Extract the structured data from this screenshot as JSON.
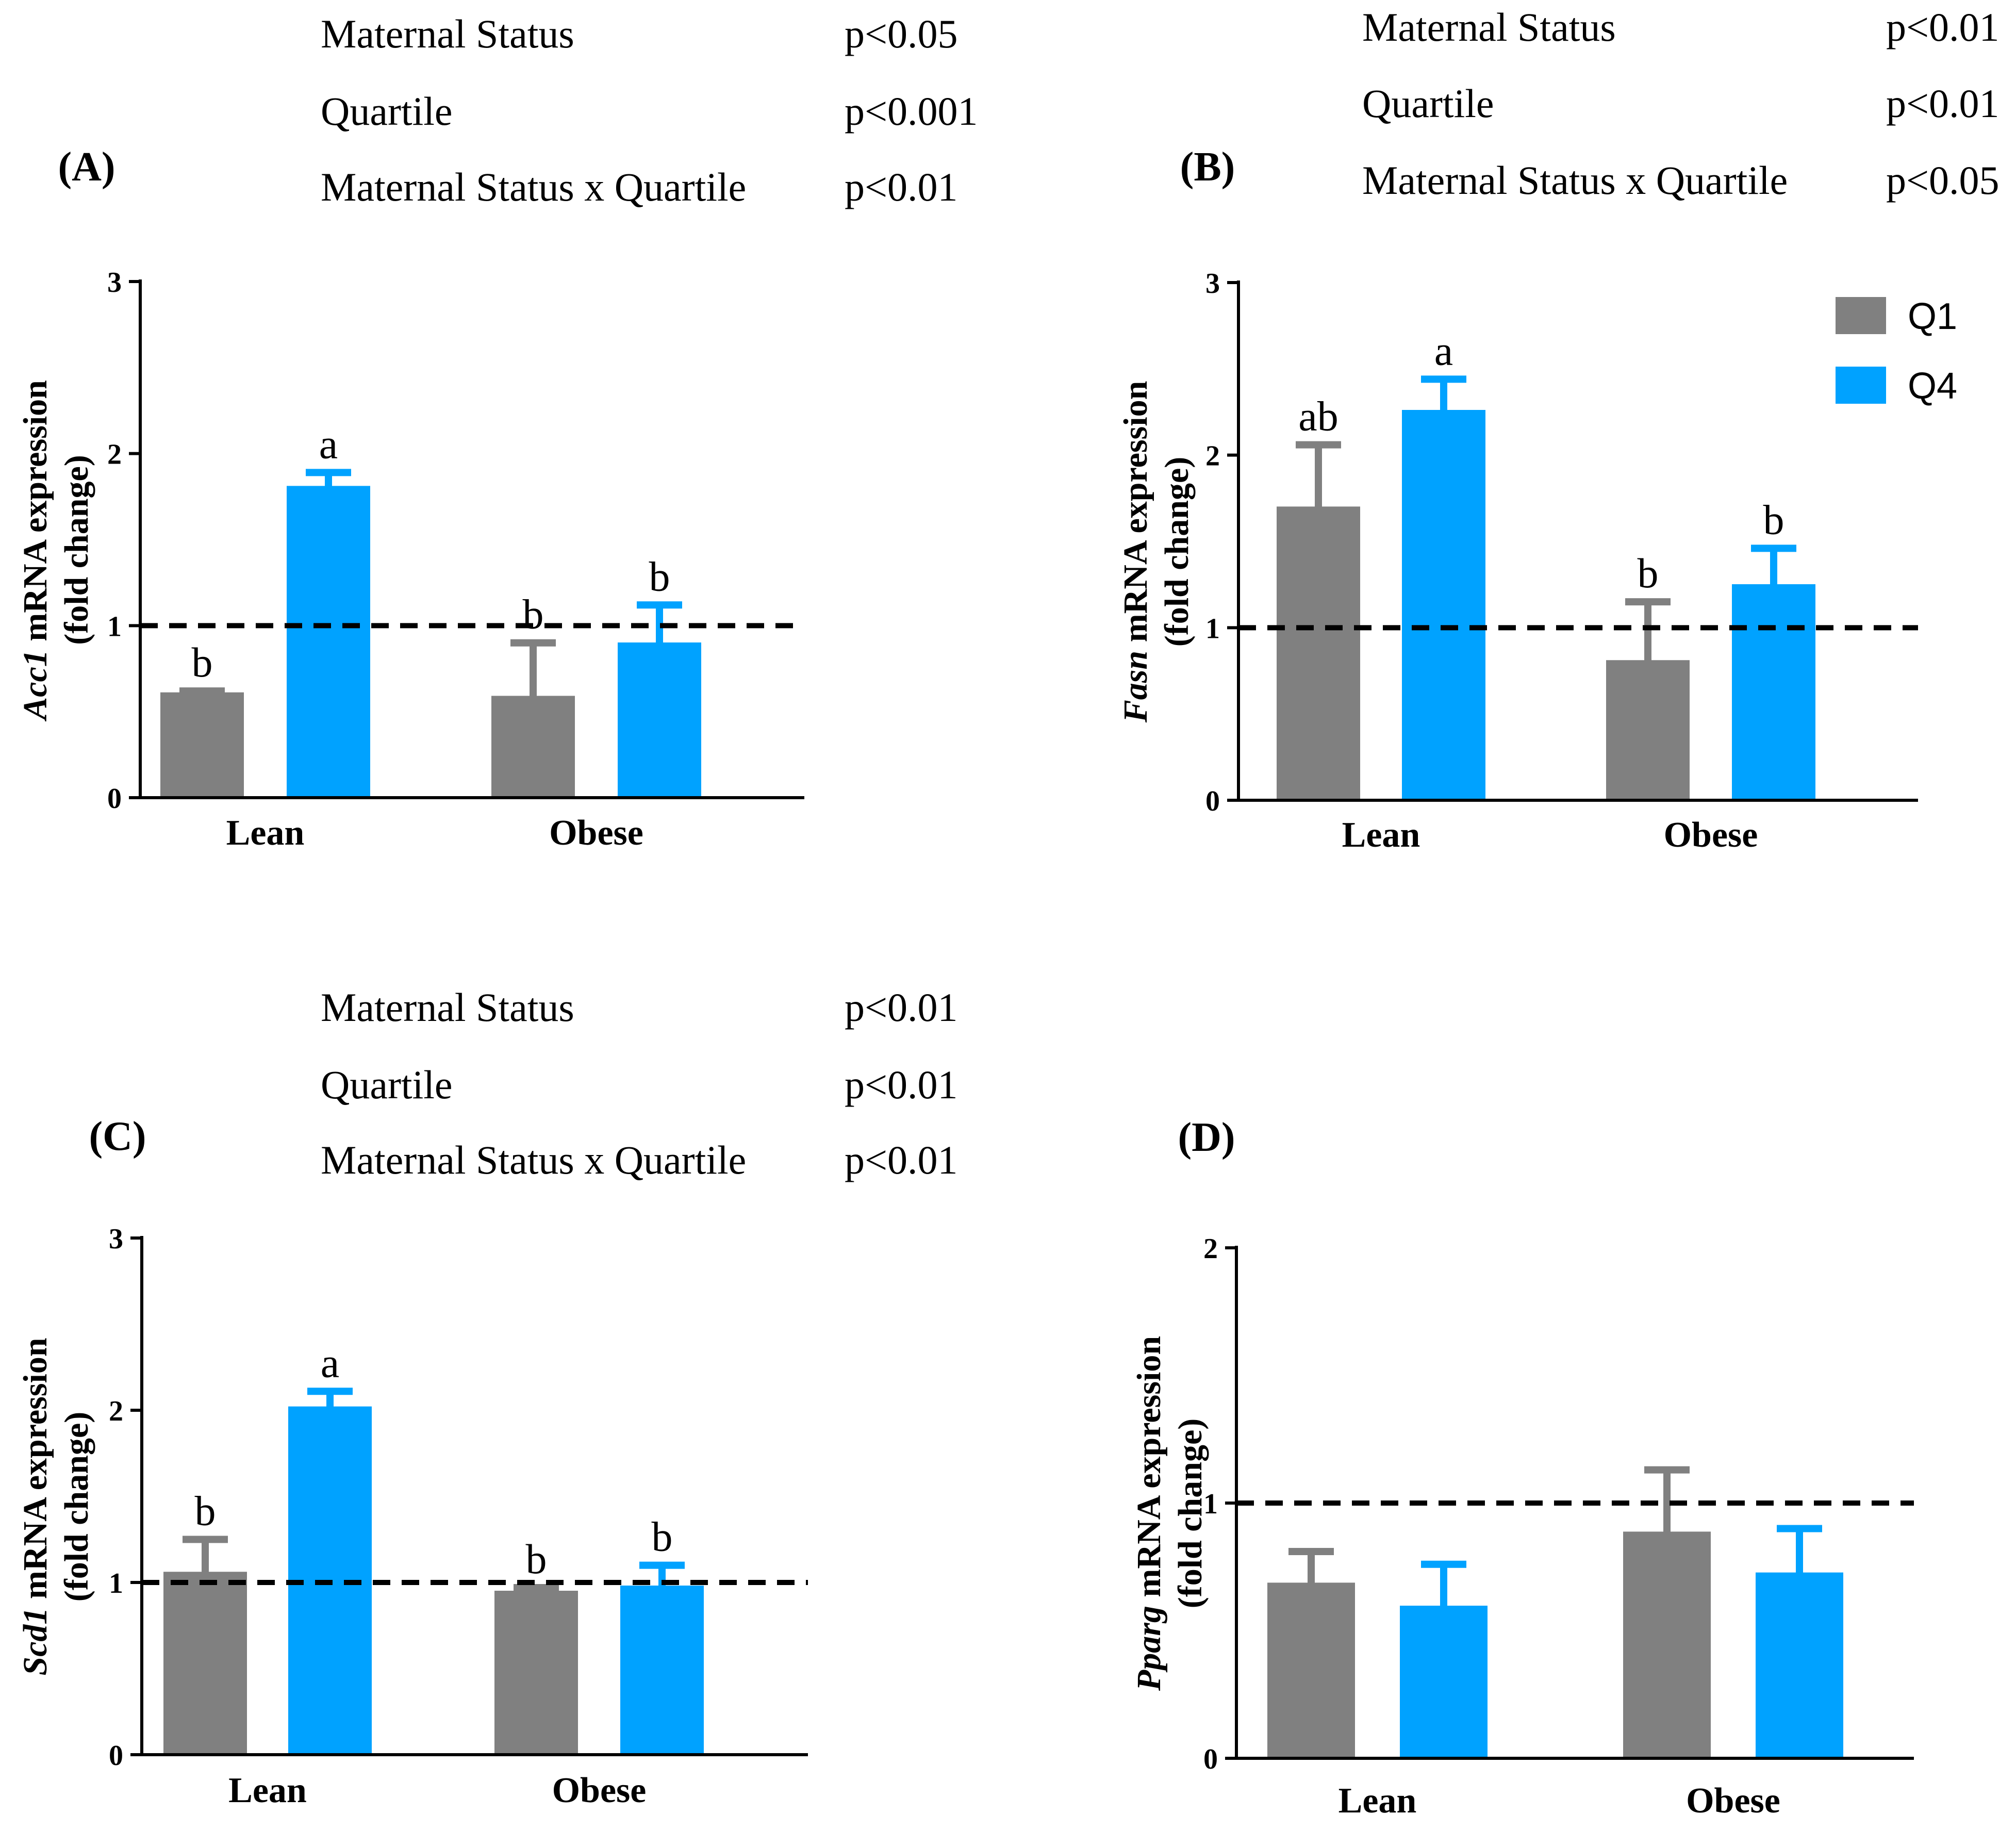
{
  "legend": [
    {
      "label": "Q1",
      "color": "#808080"
    },
    {
      "label": "Q4",
      "color": "#00A2FF"
    }
  ],
  "chart_data": [
    {
      "type": "bar",
      "panel_label": "(A)",
      "gene": "Acc1",
      "ylabel_rest": "mRNA expression",
      "ylabel_line2": "(fold change)",
      "categories": [
        "Lean",
        "Obese"
      ],
      "ylim": [
        0,
        3
      ],
      "yticks": [
        "0",
        "1",
        "2",
        "3"
      ],
      "reference_line": 1,
      "series": [
        {
          "name": "Q1",
          "values": [
            0.6,
            0.58
          ],
          "errors": [
            0.02,
            0.32
          ],
          "letters": [
            "b",
            "b"
          ]
        },
        {
          "name": "Q4",
          "values": [
            1.8,
            0.89
          ],
          "errors": [
            0.09,
            0.23
          ],
          "letters": [
            "a",
            "b"
          ]
        }
      ],
      "stats": [
        {
          "term": "Maternal Status",
          "p": "p<0.05"
        },
        {
          "term": "Quartile",
          "p": "p<0.001"
        },
        {
          "term": "Maternal Status x Quartile",
          "p": "p<0.01"
        }
      ]
    },
    {
      "type": "bar",
      "panel_label": "(B)",
      "gene": "Fasn",
      "ylabel_rest": "mRNA expression",
      "ylabel_line2": "(fold change)",
      "categories": [
        "Lean",
        "Obese"
      ],
      "ylim": [
        0,
        3
      ],
      "yticks": [
        "0",
        "1",
        "2",
        "3"
      ],
      "reference_line": 1,
      "series": [
        {
          "name": "Q1",
          "values": [
            1.69,
            0.8
          ],
          "errors": [
            0.37,
            0.35
          ],
          "letters": [
            "ab",
            "b"
          ]
        },
        {
          "name": "Q4",
          "values": [
            2.25,
            1.24
          ],
          "errors": [
            0.19,
            0.22
          ],
          "letters": [
            "a",
            "b"
          ]
        }
      ],
      "stats": [
        {
          "term": "Maternal Status",
          "p": "p<0.01"
        },
        {
          "term": "Quartile",
          "p": "p<0.01"
        },
        {
          "term": "Maternal Status x Quartile",
          "p": "p<0.05"
        }
      ]
    },
    {
      "type": "bar",
      "panel_label": "(C)",
      "gene": "Scd1",
      "ylabel_rest": "mRNA expression",
      "ylabel_line2": "(fold change)",
      "categories": [
        "Lean",
        "Obese"
      ],
      "ylim": [
        0,
        3
      ],
      "yticks": [
        "0",
        "1",
        "2",
        "3"
      ],
      "reference_line": 1,
      "series": [
        {
          "name": "Q1",
          "values": [
            1.05,
            0.94
          ],
          "errors": [
            0.2,
            0.03
          ],
          "letters": [
            "b",
            "b"
          ]
        },
        {
          "name": "Q4",
          "values": [
            2.01,
            0.97
          ],
          "errors": [
            0.1,
            0.13
          ],
          "letters": [
            "a",
            "b"
          ]
        }
      ],
      "stats": [
        {
          "term": "Maternal Status",
          "p": "p<0.01"
        },
        {
          "term": "Quartile",
          "p": "p<0.01"
        },
        {
          "term": "Maternal Status x Quartile",
          "p": "p<0.01"
        }
      ]
    },
    {
      "type": "bar",
      "panel_label": "(D)",
      "gene": "Pparg",
      "ylabel_rest": "mRNA expression",
      "ylabel_line2": "(fold change)",
      "categories": [
        "Lean",
        "Obese"
      ],
      "ylim": [
        0,
        2
      ],
      "yticks": [
        "0",
        "1",
        "2"
      ],
      "reference_line": 1,
      "series": [
        {
          "name": "Q1",
          "values": [
            0.68,
            0.88
          ],
          "errors": [
            0.13,
            0.25
          ],
          "letters": [
            "",
            ""
          ]
        },
        {
          "name": "Q4",
          "values": [
            0.59,
            0.72
          ],
          "errors": [
            0.17,
            0.18
          ],
          "letters": [
            "",
            ""
          ]
        }
      ],
      "stats": []
    }
  ]
}
